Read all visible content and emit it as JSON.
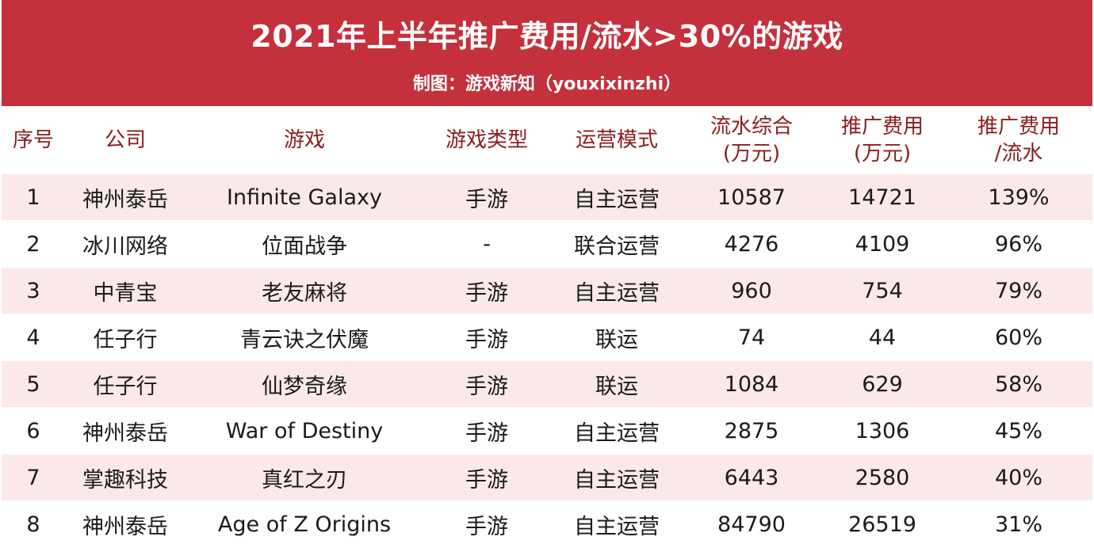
{
  "banner": {
    "title": "2021年上半年推广费用/流水>30%的游戏",
    "subtitle": "制图：游戏新知（youxixinzhi）"
  },
  "table": {
    "headers": {
      "index": "序号",
      "company": "公司",
      "game": "游戏",
      "game_type": "游戏类型",
      "operation_mode": "运营模式",
      "revenue_line1": "流水综合",
      "revenue_line2": "(万元)",
      "promotion_line1": "推广费用",
      "promotion_line2": "(万元)",
      "ratio_line1": "推广费用",
      "ratio_line2": "/流水"
    },
    "rows": [
      {
        "index": "1",
        "company": "神州泰岳",
        "game": "Infinite Galaxy",
        "game_type": "手游",
        "operation_mode": "自主运营",
        "revenue": "10587",
        "promotion": "14721",
        "ratio": "139%"
      },
      {
        "index": "2",
        "company": "冰川网络",
        "game": "位面战争",
        "game_type": "-",
        "operation_mode": "联合运营",
        "revenue": "4276",
        "promotion": "4109",
        "ratio": "96%"
      },
      {
        "index": "3",
        "company": "中青宝",
        "game": "老友麻将",
        "game_type": "手游",
        "operation_mode": "自主运营",
        "revenue": "960",
        "promotion": "754",
        "ratio": "79%"
      },
      {
        "index": "4",
        "company": "任子行",
        "game": "青云诀之伏魔",
        "game_type": "手游",
        "operation_mode": "联运",
        "revenue": "74",
        "promotion": "44",
        "ratio": "60%"
      },
      {
        "index": "5",
        "company": "任子行",
        "game": "仙梦奇缘",
        "game_type": "手游",
        "operation_mode": "联运",
        "revenue": "1084",
        "promotion": "629",
        "ratio": "58%"
      },
      {
        "index": "6",
        "company": "神州泰岳",
        "game": "War of Destiny",
        "game_type": "手游",
        "operation_mode": "自主运营",
        "revenue": "2875",
        "promotion": "1306",
        "ratio": "45%"
      },
      {
        "index": "7",
        "company": "掌趣科技",
        "game": "真红之刃",
        "game_type": "手游",
        "operation_mode": "自主运营",
        "revenue": "6443",
        "promotion": "2580",
        "ratio": "40%"
      },
      {
        "index": "8",
        "company": "神州泰岳",
        "game": "Age of Z Origins",
        "game_type": "手游",
        "operation_mode": "自主运营",
        "revenue": "84790",
        "promotion": "26519",
        "ratio": "31%"
      }
    ]
  },
  "colors": {
    "banner_bg": "#c4303b",
    "banner_text": "#ffffff",
    "header_text": "#8b1d1d",
    "stripe_row": "#fbe9e9"
  }
}
